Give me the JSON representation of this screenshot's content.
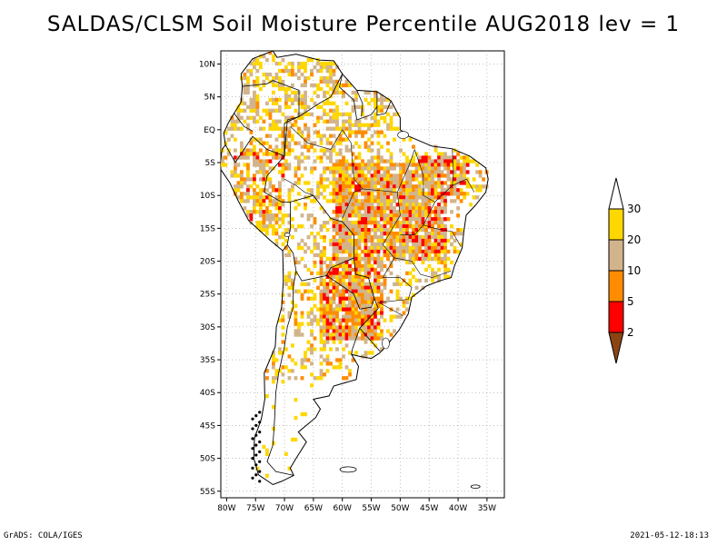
{
  "title": "SALDAS/CLSM Soil Moisture Percentile AUG2018 lev = 1",
  "footer_left": "GrADS: COLA/IGES",
  "footer_right": "2021-05-12-18:13",
  "map": {
    "lon_range": [
      -81,
      -32
    ],
    "lat_range": [
      -56,
      12
    ],
    "lat_ticks": [
      {
        "value": 10,
        "label": "10N"
      },
      {
        "value": 5,
        "label": "5N"
      },
      {
        "value": 0,
        "label": "EQ"
      },
      {
        "value": -5,
        "label": "5S"
      },
      {
        "value": -10,
        "label": "10S"
      },
      {
        "value": -15,
        "label": "15S"
      },
      {
        "value": -20,
        "label": "20S"
      },
      {
        "value": -25,
        "label": "25S"
      },
      {
        "value": -30,
        "label": "30S"
      },
      {
        "value": -35,
        "label": "35S"
      },
      {
        "value": -40,
        "label": "40S"
      },
      {
        "value": -45,
        "label": "45S"
      },
      {
        "value": -50,
        "label": "50S"
      },
      {
        "value": -55,
        "label": "55S"
      }
    ],
    "lon_ticks": [
      {
        "value": -80,
        "label": "80W"
      },
      {
        "value": -75,
        "label": "75W"
      },
      {
        "value": -70,
        "label": "70W"
      },
      {
        "value": -65,
        "label": "65W"
      },
      {
        "value": -60,
        "label": "60W"
      },
      {
        "value": -55,
        "label": "55W"
      },
      {
        "value": -50,
        "label": "50W"
      },
      {
        "value": -45,
        "label": "45W"
      },
      {
        "value": -40,
        "label": "40W"
      },
      {
        "value": -35,
        "label": "35W"
      }
    ],
    "grid": true,
    "colorbar": {
      "placement": "right",
      "levels": [
        "2",
        "5",
        "10",
        "20",
        "30"
      ],
      "colors": [
        "#8B4513",
        "#FF0000",
        "#FF8C00",
        "#D2B48C",
        "#FFD700",
        "#FFFFFF"
      ]
    }
  }
}
